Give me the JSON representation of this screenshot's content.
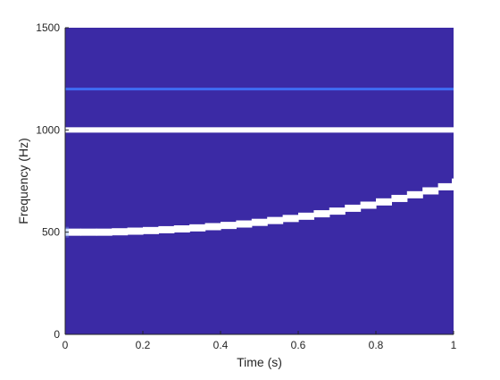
{
  "chart_data": {
    "type": "heatmap",
    "title": "",
    "xlabel": "Time (s)",
    "ylabel": "Frequency (Hz)",
    "xlim": [
      0,
      1
    ],
    "ylim": [
      0,
      1500
    ],
    "xticks": [
      0,
      0.2,
      0.4,
      0.6,
      0.8,
      1
    ],
    "xtick_labels": [
      "0",
      "0.2",
      "0.4",
      "0.6",
      "0.8",
      "1"
    ],
    "yticks": [
      0,
      500,
      1000,
      1500
    ],
    "ytick_labels": [
      "0",
      "500",
      "1000",
      "1500"
    ],
    "grid": false,
    "background_color": "#3b2aa5",
    "series": [
      {
        "kind": "constant-tone",
        "color": "#ffffff",
        "x": [
          0,
          1
        ],
        "y": [
          1000,
          1000
        ]
      },
      {
        "kind": "faint-constant-tone",
        "color": "#3f6cf3",
        "x": [
          0,
          1
        ],
        "y": [
          1200,
          1200
        ]
      },
      {
        "kind": "chirp",
        "color": "#ffffff",
        "x": [
          0,
          0.04,
          0.08,
          0.12,
          0.16,
          0.2,
          0.24,
          0.28,
          0.32,
          0.36,
          0.4,
          0.44,
          0.48,
          0.52,
          0.56,
          0.6,
          0.64,
          0.68,
          0.72,
          0.76,
          0.8,
          0.84,
          0.88,
          0.92,
          0.96,
          1
        ],
        "y": [
          500,
          500,
          500,
          502,
          505,
          508,
          512,
          516,
          521,
          527,
          533,
          540,
          548,
          557,
          567,
          578,
          590,
          603,
          617,
          632,
          648,
          665,
          683,
          702,
          722,
          745
        ]
      }
    ]
  }
}
